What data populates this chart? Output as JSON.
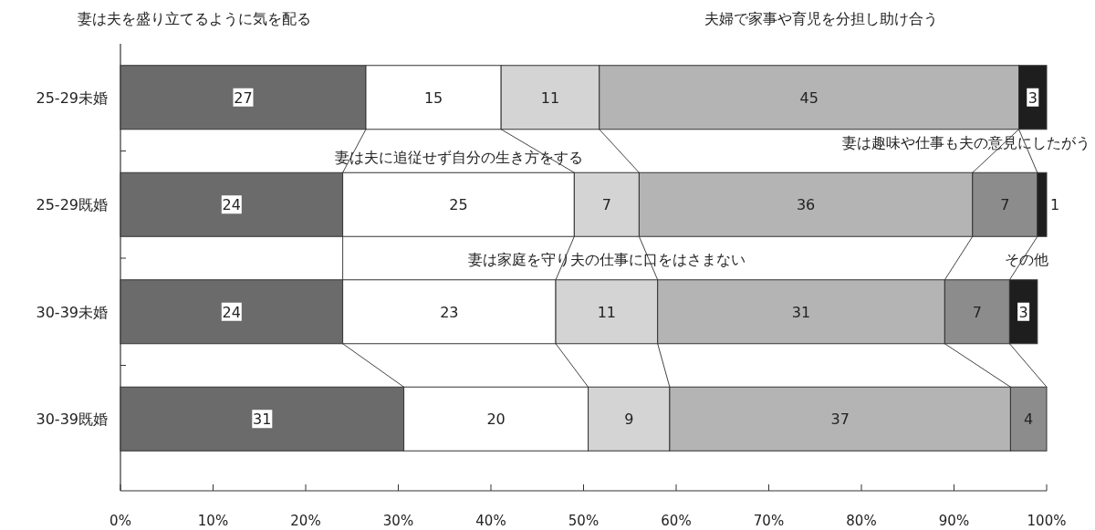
{
  "chart_data": {
    "type": "bar",
    "orientation": "horizontal",
    "stacked": true,
    "categories": [
      "25-29未婚",
      "25-29既婚",
      "30-39未婚",
      "30-39既婚"
    ],
    "series": [
      {
        "name": "妻は夫を盛り立てるように気を配る",
        "color": "#6b6b6b",
        "values": [
          26.5,
          24,
          24,
          30.6
        ],
        "value_labels": [
          "27",
          "24",
          "24",
          "31"
        ]
      },
      {
        "name": "妻は夫に追従せず自分の生き方をする",
        "color": "#ffffff",
        "values": [
          14.6,
          25,
          23,
          19.9
        ],
        "value_labels": [
          "15",
          "25",
          "23",
          "20"
        ]
      },
      {
        "name": "妻は家庭を守り夫の仕事に口をはさまない",
        "color": "#d4d4d4",
        "values": [
          10.6,
          7,
          11,
          8.8
        ],
        "value_labels": [
          "11",
          "7",
          "11",
          "9"
        ]
      },
      {
        "name": "夫婦で家事や育児を分担し助け合う",
        "color": "#b4b4b4",
        "values": [
          45.3,
          36,
          31,
          36.8
        ],
        "value_labels": [
          "45",
          "36",
          "31",
          "37"
        ]
      },
      {
        "name": "妻は趣味や仕事も夫の意見にしたがう",
        "color": "#8c8c8c",
        "values": [
          null,
          7,
          7,
          3.9
        ],
        "value_labels": [
          null,
          "7",
          "7",
          "4"
        ]
      },
      {
        "name": "その他",
        "color": "#1e1e1e",
        "values": [
          3,
          1,
          3,
          null
        ],
        "value_labels": [
          "3",
          "1",
          "3",
          null
        ]
      }
    ],
    "xlim": [
      0,
      100
    ],
    "xticks": [
      {
        "value": 0,
        "label": "0%"
      },
      {
        "value": 10,
        "label": "10%"
      },
      {
        "value": 20,
        "label": "20%"
      },
      {
        "value": 30,
        "label": "30%"
      },
      {
        "value": 40,
        "label": "40%"
      },
      {
        "value": 50,
        "label": "50%"
      },
      {
        "value": 60,
        "label": "60%"
      },
      {
        "value": 70,
        "label": "70%"
      },
      {
        "value": 80,
        "label": "80%"
      },
      {
        "value": 90,
        "label": "90%"
      },
      {
        "value": 100,
        "label": "100%"
      }
    ]
  }
}
